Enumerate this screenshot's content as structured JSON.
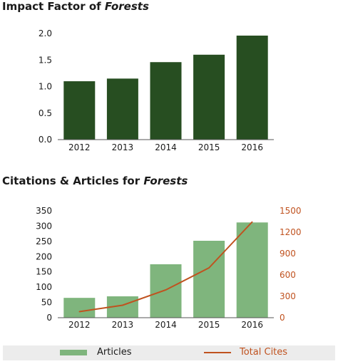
{
  "colors": {
    "impact_bar": "#274e21",
    "articles_bar": "#7fb57d",
    "cites_line": "#c0521f",
    "axis_right": "#c0521f"
  },
  "chart1_title": {
    "prefix": "Impact Factor of ",
    "italic": "Forests"
  },
  "chart2_title": {
    "prefix": "Citations & Articles for ",
    "italic": "Forests"
  },
  "legend": {
    "articles": "Articles",
    "cites": "Total Cites"
  },
  "chart_data": [
    {
      "type": "bar",
      "title": "Impact Factor of Forests",
      "categories": [
        "2012",
        "2013",
        "2014",
        "2015",
        "2016"
      ],
      "values": [
        1.1,
        1.15,
        1.46,
        1.6,
        1.96
      ],
      "ylim": [
        0,
        2.0
      ],
      "yticks": [
        "0.0",
        "0.5",
        "1.0",
        "1.5",
        "2.0"
      ],
      "grid": false
    },
    {
      "type": "bar",
      "title": "Citations & Articles for Forests",
      "categories": [
        "2012",
        "2013",
        "2014",
        "2015",
        "2016"
      ],
      "series": [
        {
          "name": "Articles",
          "type": "bar",
          "axis": "left",
          "values": [
            65,
            70,
            175,
            252,
            312
          ]
        },
        {
          "name": "Total Cites",
          "type": "line",
          "axis": "right",
          "values": [
            85,
            175,
            390,
            700,
            1345
          ]
        }
      ],
      "ylim_left": [
        0,
        350
      ],
      "yticks_left": [
        "0",
        "50",
        "100",
        "150",
        "200",
        "250",
        "300",
        "350"
      ],
      "ylim_right": [
        0,
        1500
      ],
      "yticks_right": [
        "0",
        "300",
        "600",
        "900",
        "1200",
        "1500"
      ],
      "legend_position": "bottom",
      "grid": false
    }
  ]
}
